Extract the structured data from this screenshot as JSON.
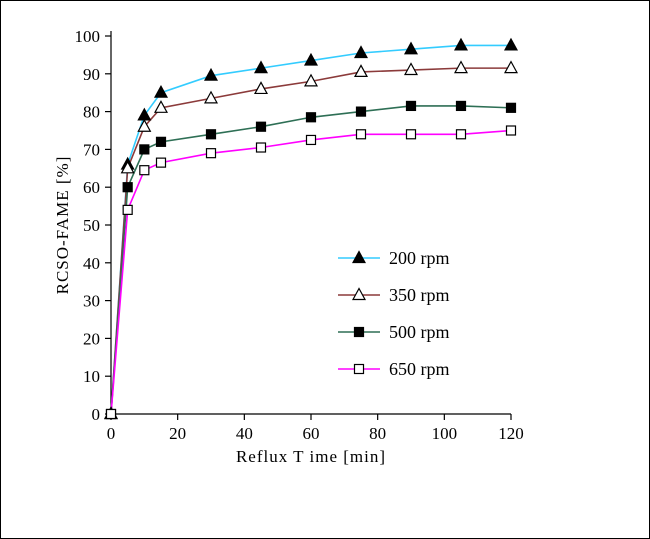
{
  "figure": {
    "background": "#ffffff",
    "border_color": "#000000"
  },
  "chart_data": {
    "type": "line",
    "title": "",
    "xlabel": "Reflux T ime [min]",
    "ylabel": "RCSO-FAME [%]",
    "xlim": [
      0,
      120
    ],
    "ylim": [
      0,
      100
    ],
    "x_ticks": [
      0,
      20,
      40,
      60,
      80,
      100,
      120
    ],
    "y_ticks": [
      0,
      10,
      20,
      30,
      40,
      50,
      60,
      70,
      80,
      90,
      100
    ],
    "grid": false,
    "legend_position": "inside-right",
    "x": [
      0,
      5,
      10,
      15,
      30,
      45,
      60,
      75,
      90,
      105,
      120
    ],
    "series": [
      {
        "name": "200 rpm",
        "marker": "triangle-filled",
        "marker_color": "#000000",
        "line_color": "#33ccff",
        "values": [
          0,
          66,
          79,
          85,
          89.5,
          91.5,
          93.5,
          95.5,
          96.5,
          97.5,
          97.5
        ]
      },
      {
        "name": "350 rpm",
        "marker": "triangle-open",
        "marker_color": "#000000",
        "line_color": "#8b3a3a",
        "values": [
          0,
          65,
          76,
          81,
          83.5,
          86,
          88,
          90.5,
          91,
          91.5,
          91.5
        ]
      },
      {
        "name": "500 rpm",
        "marker": "square-filled",
        "marker_color": "#000000",
        "line_color": "#2e6f55",
        "values": [
          0,
          60,
          70,
          72,
          74,
          76,
          78.5,
          80,
          81.5,
          81.5,
          81
        ]
      },
      {
        "name": "650 rpm",
        "marker": "square-open",
        "marker_color": "#000000",
        "line_color": "#ff00ff",
        "values": [
          0,
          54,
          64.5,
          66.5,
          69,
          70.5,
          72.5,
          74,
          74,
          74,
          75
        ]
      }
    ]
  }
}
